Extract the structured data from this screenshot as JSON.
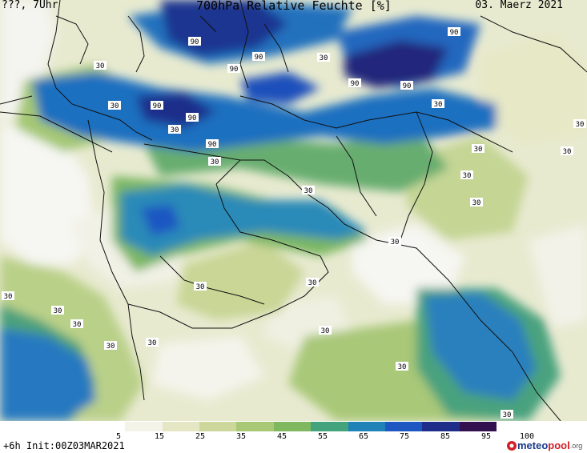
{
  "header": {
    "left": "???, 7Uhr",
    "title": "700hPa Relative Feuchte [%]",
    "date": "03. Maerz 2021"
  },
  "legend": {
    "ticks": [
      "5",
      "15",
      "25",
      "35",
      "45",
      "55",
      "65",
      "75",
      "85",
      "95",
      "100"
    ],
    "colors": [
      "#ffffff",
      "#f3f3e8",
      "#e4e6c4",
      "#cdd79c",
      "#a8c875",
      "#7fb85f",
      "#42a37d",
      "#1f83b8",
      "#1e57c2",
      "#1f2d8a",
      "#32104f"
    ]
  },
  "contour_labels": [
    "90",
    "90",
    "90",
    "90",
    "90",
    "90",
    "90",
    "90",
    "90",
    "30",
    "30",
    "30",
    "30",
    "30",
    "30",
    "30",
    "30",
    "30",
    "30",
    "30",
    "30",
    "30",
    "30",
    "30",
    "30",
    "30",
    "30",
    "30",
    "30",
    "30",
    "30",
    "30"
  ],
  "footer": {
    "init": "+6h Init:00Z03MAR2021"
  },
  "brand": {
    "meteo": "meteo",
    "pool": "pool",
    "org": ".org"
  }
}
